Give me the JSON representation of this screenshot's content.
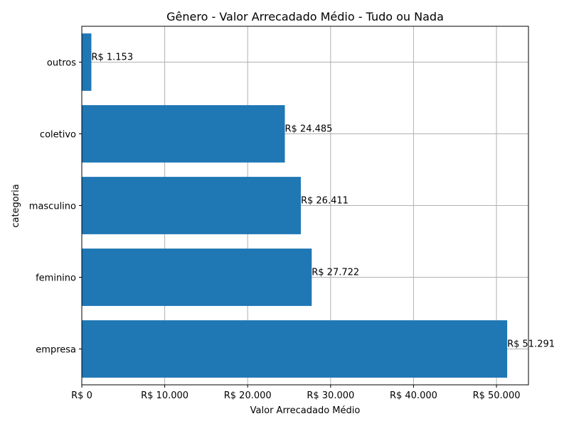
{
  "chart_data": {
    "type": "bar",
    "orientation": "horizontal",
    "title": "Gênero - Valor Arrecadado Médio - Tudo ou Nada",
    "xlabel": "Valor Arrecadado Médio",
    "ylabel": "categoria",
    "categories": [
      "empresa",
      "feminino",
      "masculino",
      "coletivo",
      "outros"
    ],
    "values": [
      51291,
      27722,
      26411,
      24485,
      1153
    ],
    "value_labels": [
      "R$ 51.291",
      "R$ 27.722",
      "R$ 26.411",
      "R$ 24.485",
      "R$ 1.153"
    ],
    "xlim": [
      0,
      53856
    ],
    "xticks": [
      0,
      10000,
      20000,
      30000,
      40000,
      50000
    ],
    "xtick_labels": [
      "R$ 0",
      "R$ 10.000",
      "R$ 20.000",
      "R$ 30.000",
      "R$ 40.000",
      "R$ 50.000"
    ],
    "grid": true,
    "legend": "none",
    "bar_color": "#1f77b4",
    "grid_color": "#b0b0b0"
  }
}
